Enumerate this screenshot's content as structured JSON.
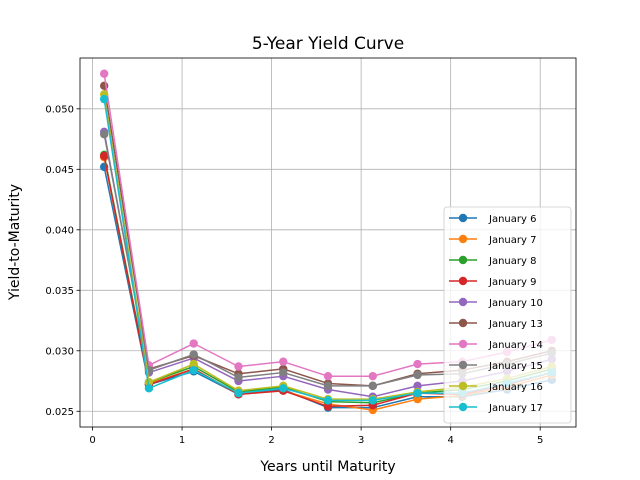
{
  "chart_data": {
    "type": "line",
    "title": "5-Year Yield Curve",
    "xlabel": "Years until Maturity",
    "ylabel": "Yield-to-Maturity",
    "xlim": [
      -0.14,
      5.4
    ],
    "ylim": [
      0.0237,
      0.0542
    ],
    "xticks": [
      0,
      1,
      2,
      3,
      4,
      5
    ],
    "xtick_labels": [
      "0",
      "1",
      "2",
      "3",
      "4",
      "5"
    ],
    "yticks": [
      0.025,
      0.03,
      0.035,
      0.04,
      0.045,
      0.05
    ],
    "ytick_labels": [
      "0.025",
      "0.030",
      "0.035",
      "0.040",
      "0.045",
      "0.050"
    ],
    "grid": true,
    "legend_position": "lower-right",
    "x": [
      0.13,
      0.63,
      1.13,
      1.63,
      2.13,
      2.63,
      3.13,
      3.63,
      4.13,
      4.63,
      5.13
    ],
    "series": [
      {
        "name": "January 6",
        "color": "#1f77b4",
        "values": [
          0.0452,
          0.0272,
          0.0283,
          0.0264,
          0.0268,
          0.0253,
          0.0253,
          0.0262,
          0.0262,
          0.0268,
          0.0276
        ]
      },
      {
        "name": "January 7",
        "color": "#ff7f0e",
        "values": [
          0.046,
          0.0273,
          0.0285,
          0.0264,
          0.0267,
          0.0256,
          0.0251,
          0.026,
          0.0263,
          0.027,
          0.028
        ]
      },
      {
        "name": "January 8",
        "color": "#2ca02c",
        "values": [
          0.0462,
          0.0274,
          0.0287,
          0.0266,
          0.027,
          0.0258,
          0.0257,
          0.0265,
          0.0268,
          0.0275,
          0.0285
        ]
      },
      {
        "name": "January 9",
        "color": "#d62728",
        "values": [
          0.0461,
          0.0272,
          0.0285,
          0.0264,
          0.0267,
          0.0254,
          0.0255,
          0.0265,
          0.0264,
          0.0272,
          0.0282
        ]
      },
      {
        "name": "January 10",
        "color": "#9467bd",
        "values": [
          0.0481,
          0.0282,
          0.0294,
          0.0275,
          0.0279,
          0.0268,
          0.0262,
          0.0271,
          0.0275,
          0.0283,
          0.0293
        ]
      },
      {
        "name": "January 13",
        "color": "#8c564b",
        "values": [
          0.0519,
          0.0285,
          0.0296,
          0.0281,
          0.0285,
          0.0273,
          0.0271,
          0.0281,
          0.0284,
          0.0291,
          0.03
        ]
      },
      {
        "name": "January 14",
        "color": "#e377c2",
        "values": [
          0.0529,
          0.0288,
          0.0306,
          0.0287,
          0.0291,
          0.0279,
          0.0279,
          0.0289,
          0.0291,
          0.0299,
          0.0309
        ]
      },
      {
        "name": "January 15",
        "color": "#7f7f7f",
        "values": [
          0.0479,
          0.0284,
          0.0297,
          0.0278,
          0.0282,
          0.0271,
          0.0271,
          0.028,
          0.0281,
          0.0289,
          0.0298
        ]
      },
      {
        "name": "January 16",
        "color": "#bcbd22",
        "values": [
          0.0512,
          0.0274,
          0.0289,
          0.0267,
          0.0271,
          0.026,
          0.026,
          0.0266,
          0.027,
          0.0277,
          0.0287
        ]
      },
      {
        "name": "January 17",
        "color": "#17becf",
        "values": [
          0.0508,
          0.0269,
          0.0284,
          0.0265,
          0.0269,
          0.0259,
          0.0259,
          0.0265,
          0.0265,
          0.0273,
          0.0282
        ]
      }
    ]
  }
}
